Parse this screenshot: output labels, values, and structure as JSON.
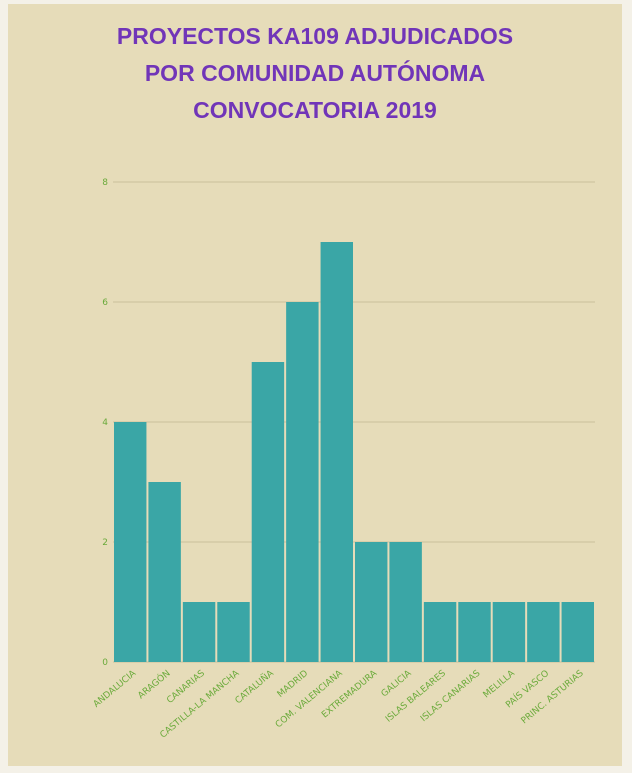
{
  "title_lines": [
    "PROYECTOS KA109 ADJUDICADOS",
    "POR COMUNIDAD AUTÓNOMA",
    "CONVOCATORIA 2019"
  ],
  "colors": {
    "background": "#e6dcb9",
    "title": "#7135b8",
    "bar": "#3aa6a6",
    "tick_label": "#6aaa3a",
    "grid": "#c9bf9c"
  },
  "chart_data": {
    "type": "bar",
    "title": "PROYECTOS KA109 ADJUDICADOS POR COMUNIDAD AUTÓNOMA CONVOCATORIA 2019",
    "categories": [
      "ANDALUCIA",
      "ARAGÓN",
      "CANARIAS",
      "CASTILLA-LA MANCHA",
      "CATALUÑA",
      "MADRID",
      "COM. VALENCIANA",
      "EXTREMADURA",
      "GALICIA",
      "ISLAS BALEARES",
      "ISLAS CANARIAS",
      "MELILLA",
      "PAÍS VASCO",
      "PRINC. ASTURIAS"
    ],
    "values": [
      4,
      3,
      1,
      1,
      5,
      6,
      7,
      2,
      2,
      1,
      1,
      1,
      1,
      1
    ],
    "yticks": [
      0,
      2,
      4,
      6,
      8
    ],
    "ylim": [
      0,
      8
    ],
    "xlabel": "",
    "ylabel": "",
    "grid": true,
    "legend": "none"
  }
}
